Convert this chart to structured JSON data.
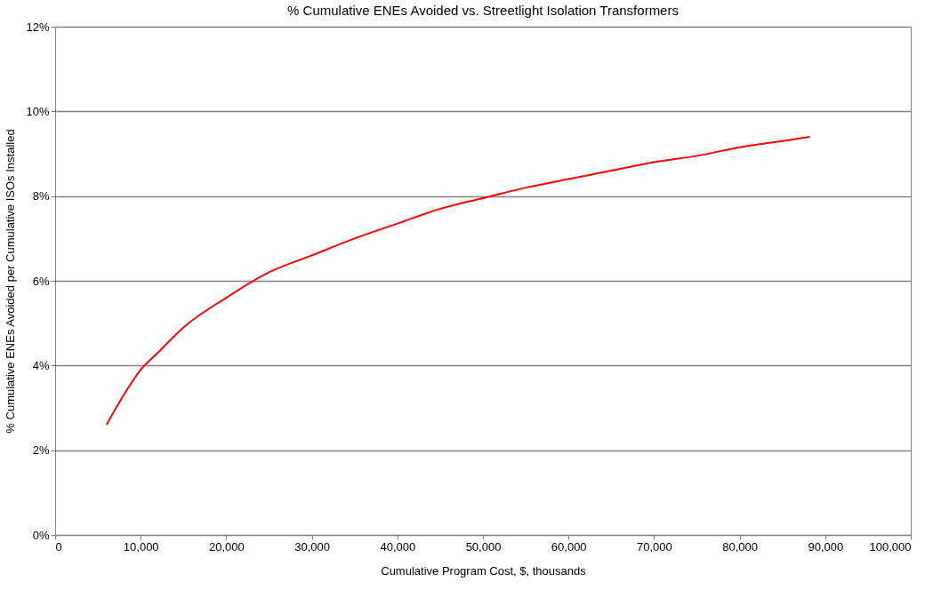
{
  "chart_data": {
    "type": "line",
    "title": "% Cumulative ENEs Avoided vs. Streetlight Isolation Transformers",
    "xlabel": "Cumulative Program Cost, $, thousands",
    "ylabel": "% Cumulative ENEs Avoided per Cumulative ISOs Installed",
    "x": [
      6000,
      8000,
      10000,
      12000,
      15000,
      20000,
      25000,
      30000,
      35000,
      40000,
      45000,
      50000,
      55000,
      60000,
      65000,
      70000,
      75000,
      80000,
      85000,
      88200
    ],
    "series": [
      {
        "color": "#ff0000",
        "values": [
          2.6,
          3.3,
          3.9,
          4.3,
          4.9,
          5.6,
          6.2,
          6.6,
          7.0,
          7.35,
          7.7,
          7.95,
          8.2,
          8.4,
          8.6,
          8.8,
          8.95,
          9.15,
          9.3,
          9.4
        ]
      }
    ],
    "xlim": [
      0,
      100000
    ],
    "ylim": [
      0,
      12
    ],
    "xticks": [
      0,
      {
        "value": 10000,
        "label": "10,000"
      },
      {
        "value": 20000,
        "label": "20,000"
      },
      {
        "value": 30000,
        "label": "30,000"
      },
      {
        "value": 40000,
        "label": "40,000"
      },
      {
        "value": 50000,
        "label": "50,000"
      },
      {
        "value": 60000,
        "label": "60,000"
      },
      {
        "value": 70000,
        "label": "70,000"
      },
      {
        "value": 80000,
        "label": "80,000"
      },
      {
        "value": 90000,
        "label": "90,000"
      },
      {
        "value": 100000,
        "label": "100,000"
      }
    ],
    "yticks": [
      {
        "value": 0,
        "label": "0%"
      },
      {
        "value": 2,
        "label": "2%"
      },
      {
        "value": 4,
        "label": "4%"
      },
      {
        "value": 6,
        "label": "6%"
      },
      {
        "value": 8,
        "label": "8%"
      },
      {
        "value": 10,
        "label": "10%"
      },
      {
        "value": 12,
        "label": "12%"
      }
    ],
    "grid": "y",
    "marker": "none",
    "line_style": "solid"
  }
}
